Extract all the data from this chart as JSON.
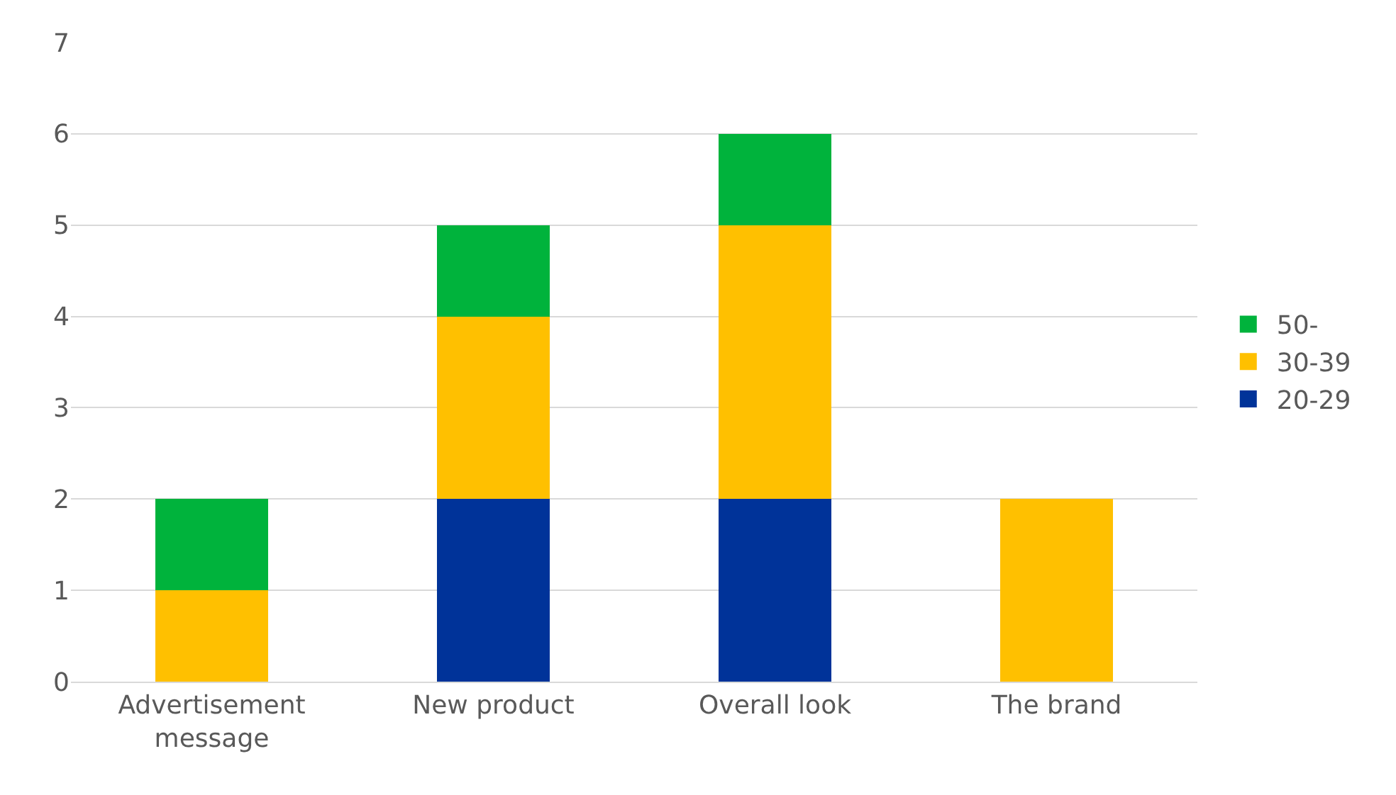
{
  "chart_data": {
    "type": "bar",
    "stacked": true,
    "categories": [
      "Advertisement message",
      "New product",
      "Overall look",
      "The brand"
    ],
    "series": [
      {
        "name": "20-29",
        "color": "#003399",
        "values": [
          0,
          2,
          2,
          0
        ]
      },
      {
        "name": "30-39",
        "color": "#ffc000",
        "values": [
          1,
          2,
          3,
          2
        ]
      },
      {
        "name": "50-",
        "color": "#00b33c",
        "values": [
          1,
          1,
          1,
          0
        ]
      }
    ],
    "ylim": [
      0,
      7
    ],
    "yticks": [
      0,
      1,
      2,
      3,
      4,
      5,
      6,
      7
    ],
    "grid": "y",
    "legend": "right"
  }
}
